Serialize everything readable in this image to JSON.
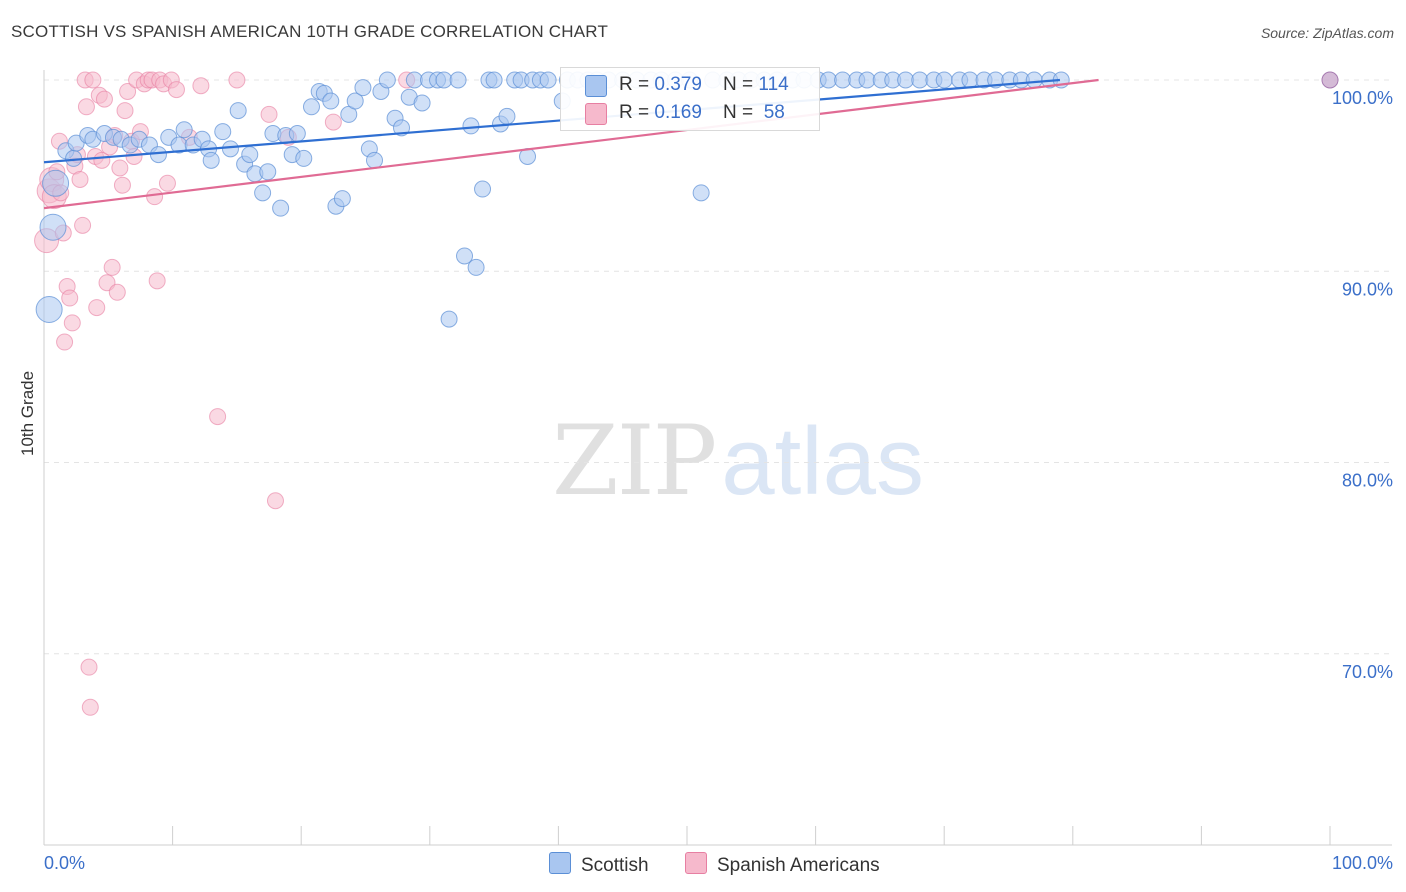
{
  "title": "SCOTTISH VS SPANISH AMERICAN 10TH GRADE CORRELATION CHART",
  "source": "Source: ZipAtlas.com",
  "watermark": {
    "zip": "ZIP",
    "atlas": "atlas"
  },
  "legend_top": {
    "rows": [
      {
        "r_label": "R = ",
        "r_value": "0.379",
        "n_label": "N = ",
        "n_value": "114"
      },
      {
        "r_label": "R = ",
        "r_value": "0.169",
        "n_label": "N = ",
        "n_value": " 58"
      }
    ]
  },
  "colors": {
    "blue_fill": "#a9c6f0",
    "blue_stroke": "#5b8fd6",
    "blue_line": "#2f6fd2",
    "pink_fill": "#f6b9cc",
    "pink_stroke": "#e77fa2",
    "pink_line": "#e06b94",
    "tick_label": "#3b6fc9",
    "grid": "#e4e4e4"
  },
  "chart_data": {
    "type": "scatter",
    "title": "SCOTTISH VS SPANISH AMERICAN 10TH GRADE CORRELATION CHART",
    "xlabel": "",
    "ylabel": "10th Grade",
    "xlim": [
      0,
      100
    ],
    "ylim": [
      60,
      100
    ],
    "x_tick_labels": [
      "0.0%",
      "100.0%"
    ],
    "y_ticks": [
      100,
      90,
      80,
      70
    ],
    "y_tick_labels": [
      "100.0%",
      "90.0%",
      "80.0%",
      "70.0%"
    ],
    "series": [
      {
        "name": "Scottish",
        "r": 0.379,
        "n": 114,
        "trend": {
          "x": [
            0,
            79
          ],
          "y": [
            95.7,
            100
          ]
        },
        "points": [
          [
            0.9,
            94.6
          ],
          [
            0.7,
            92.3
          ],
          [
            0.4,
            88.0
          ],
          [
            1.7,
            96.3
          ],
          [
            2.3,
            95.9
          ],
          [
            2.5,
            96.7
          ],
          [
            3.4,
            97.1
          ],
          [
            3.8,
            96.9
          ],
          [
            4.7,
            97.2
          ],
          [
            5.4,
            97.0
          ],
          [
            6.0,
            96.9
          ],
          [
            6.7,
            96.6
          ],
          [
            7.4,
            96.9
          ],
          [
            8.2,
            96.6
          ],
          [
            8.9,
            96.1
          ],
          [
            9.7,
            97.0
          ],
          [
            10.5,
            96.6
          ],
          [
            10.9,
            97.4
          ],
          [
            11.6,
            96.6
          ],
          [
            12.3,
            96.9
          ],
          [
            12.8,
            96.4
          ],
          [
            13.0,
            95.8
          ],
          [
            13.9,
            97.3
          ],
          [
            14.5,
            96.4
          ],
          [
            15.1,
            98.4
          ],
          [
            15.6,
            95.6
          ],
          [
            16.0,
            96.1
          ],
          [
            16.4,
            95.1
          ],
          [
            17.0,
            94.1
          ],
          [
            17.4,
            95.2
          ],
          [
            17.8,
            97.2
          ],
          [
            18.4,
            93.3
          ],
          [
            18.8,
            97.1
          ],
          [
            19.3,
            96.1
          ],
          [
            19.7,
            97.2
          ],
          [
            20.2,
            95.9
          ],
          [
            20.8,
            98.6
          ],
          [
            21.4,
            99.4
          ],
          [
            21.8,
            99.3
          ],
          [
            22.3,
            98.9
          ],
          [
            22.7,
            93.4
          ],
          [
            23.2,
            93.8
          ],
          [
            23.7,
            98.2
          ],
          [
            24.2,
            98.9
          ],
          [
            24.8,
            99.6
          ],
          [
            25.3,
            96.4
          ],
          [
            25.7,
            95.8
          ],
          [
            26.2,
            99.4
          ],
          [
            26.7,
            100
          ],
          [
            27.3,
            98.0
          ],
          [
            27.8,
            97.5
          ],
          [
            28.4,
            99.1
          ],
          [
            28.8,
            100
          ],
          [
            29.4,
            98.8
          ],
          [
            29.9,
            100
          ],
          [
            30.6,
            100
          ],
          [
            31.1,
            100
          ],
          [
            31.5,
            87.5
          ],
          [
            32.2,
            100
          ],
          [
            32.7,
            90.8
          ],
          [
            33.2,
            97.6
          ],
          [
            33.6,
            90.2
          ],
          [
            34.1,
            94.3
          ],
          [
            34.6,
            100
          ],
          [
            35.0,
            100
          ],
          [
            35.5,
            97.7
          ],
          [
            36.0,
            98.1
          ],
          [
            36.6,
            100
          ],
          [
            37.1,
            100
          ],
          [
            37.6,
            96.0
          ],
          [
            38.0,
            100
          ],
          [
            38.6,
            100
          ],
          [
            39.2,
            100
          ],
          [
            40.3,
            98.9
          ],
          [
            40.7,
            100
          ],
          [
            41.5,
            100
          ],
          [
            42.3,
            100
          ],
          [
            43.0,
            100
          ],
          [
            43.9,
            100
          ],
          [
            45.0,
            100
          ],
          [
            46.1,
            100
          ],
          [
            47.2,
            100
          ],
          [
            48.0,
            100
          ],
          [
            49.1,
            100
          ],
          [
            50.2,
            100
          ],
          [
            51.1,
            94.1
          ],
          [
            52.0,
            100
          ],
          [
            53.1,
            100
          ],
          [
            54.0,
            100
          ],
          [
            55.0,
            100
          ],
          [
            56.0,
            100
          ],
          [
            57.0,
            100
          ],
          [
            58.2,
            100
          ],
          [
            59.1,
            100
          ],
          [
            60.2,
            100
          ],
          [
            61.0,
            100
          ],
          [
            62.1,
            100
          ],
          [
            63.2,
            100
          ],
          [
            64.0,
            100
          ],
          [
            65.1,
            100
          ],
          [
            66.0,
            100
          ],
          [
            67.0,
            100
          ],
          [
            68.1,
            100
          ],
          [
            69.2,
            100
          ],
          [
            70.0,
            100
          ],
          [
            71.2,
            100
          ],
          [
            72.0,
            100
          ],
          [
            73.1,
            100
          ],
          [
            74.0,
            100
          ],
          [
            75.1,
            100
          ],
          [
            76.0,
            100
          ],
          [
            77.0,
            100
          ],
          [
            78.2,
            100
          ],
          [
            79.1,
            100
          ]
        ]
      },
      {
        "name": "Spanish Americans",
        "r": 0.169,
        "n": 58,
        "trend": {
          "x": [
            0,
            82
          ],
          "y": [
            93.3,
            100
          ]
        },
        "points": [
          [
            0.2,
            91.6
          ],
          [
            0.4,
            94.2
          ],
          [
            0.6,
            94.8
          ],
          [
            0.8,
            93.9
          ],
          [
            1.0,
            95.2
          ],
          [
            1.2,
            96.8
          ],
          [
            1.3,
            94.1
          ],
          [
            1.5,
            92.0
          ],
          [
            1.6,
            86.3
          ],
          [
            1.8,
            89.2
          ],
          [
            2.0,
            88.6
          ],
          [
            2.2,
            87.3
          ],
          [
            2.4,
            95.5
          ],
          [
            2.6,
            96.1
          ],
          [
            2.8,
            94.8
          ],
          [
            3.0,
            92.4
          ],
          [
            3.2,
            100
          ],
          [
            3.3,
            98.6
          ],
          [
            3.5,
            69.3
          ],
          [
            3.6,
            67.2
          ],
          [
            3.8,
            100
          ],
          [
            4.0,
            96.0
          ],
          [
            4.1,
            88.1
          ],
          [
            4.3,
            99.2
          ],
          [
            4.5,
            95.8
          ],
          [
            4.7,
            99.0
          ],
          [
            4.9,
            89.4
          ],
          [
            5.1,
            96.5
          ],
          [
            5.3,
            90.2
          ],
          [
            5.5,
            97.1
          ],
          [
            5.7,
            88.9
          ],
          [
            5.9,
            95.4
          ],
          [
            6.1,
            94.5
          ],
          [
            6.3,
            98.4
          ],
          [
            6.5,
            99.4
          ],
          [
            6.8,
            96.8
          ],
          [
            7.0,
            96.0
          ],
          [
            7.2,
            100
          ],
          [
            7.5,
            97.3
          ],
          [
            7.8,
            99.8
          ],
          [
            8.1,
            100
          ],
          [
            8.4,
            100
          ],
          [
            8.6,
            93.9
          ],
          [
            8.8,
            89.5
          ],
          [
            9.0,
            100
          ],
          [
            9.3,
            99.8
          ],
          [
            9.6,
            94.6
          ],
          [
            9.9,
            100
          ],
          [
            10.3,
            99.5
          ],
          [
            11.3,
            97.0
          ],
          [
            12.2,
            99.7
          ],
          [
            13.5,
            82.4
          ],
          [
            15.0,
            100
          ],
          [
            17.5,
            98.2
          ],
          [
            18.0,
            78.0
          ],
          [
            19.0,
            97.0
          ],
          [
            22.5,
            97.8
          ],
          [
            28.2,
            100
          ]
        ]
      }
    ],
    "extra_points": [
      {
        "series": "both",
        "x": 100,
        "y": 100
      }
    ]
  },
  "bottom_legend": [
    {
      "label": "Scottish"
    },
    {
      "label": "Spanish Americans"
    }
  ]
}
